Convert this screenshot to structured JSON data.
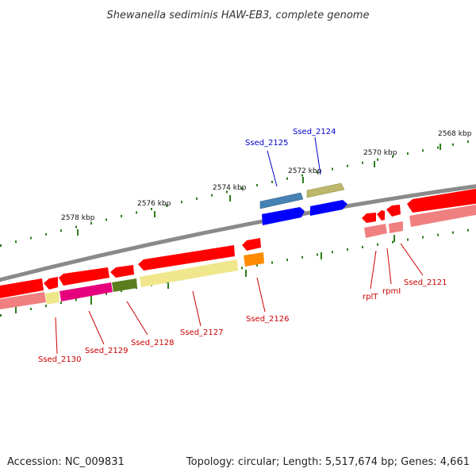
{
  "title": "Shewanella sediminis HAW-EB3, complete genome",
  "accession": "Accession: NC_009831",
  "topology": "Topology: circular; Length: 5,517,674 bp; Genes: 4,661",
  "scale_labels": [
    "2578 kbp",
    "2576 kbp",
    "2574 kbp",
    "2572 kbp",
    "2570 kbp",
    "2568 kbp"
  ],
  "gene_labels": {
    "ssed_2130": "Ssed_2130",
    "ssed_2129": "Ssed_2129",
    "ssed_2128": "Ssed_2128",
    "ssed_2127": "Ssed_2127",
    "ssed_2126": "Ssed_2126",
    "ssed_2125": "Ssed_2125",
    "ssed_2124": "Ssed_2124",
    "rplT": "rplT",
    "rpmI": "rpmI",
    "ssed_2121": "Ssed_2121"
  },
  "colors": {
    "backbone": "#8a8a8a",
    "tick": "#2e7d1e",
    "gene_red": "#ff0000",
    "gene_pink": "#f08080",
    "gene_blue": "#0000ff",
    "gene_steelblue": "#4682b4",
    "gene_olive": "#bdb76b",
    "gene_khaki": "#f0e68c",
    "gene_magenta": "#e6007e",
    "gene_darkolive": "#5a7d1e",
    "gene_orange": "#ff8c00",
    "label_red": "#cc0000",
    "label_blue": "#0000cc"
  }
}
